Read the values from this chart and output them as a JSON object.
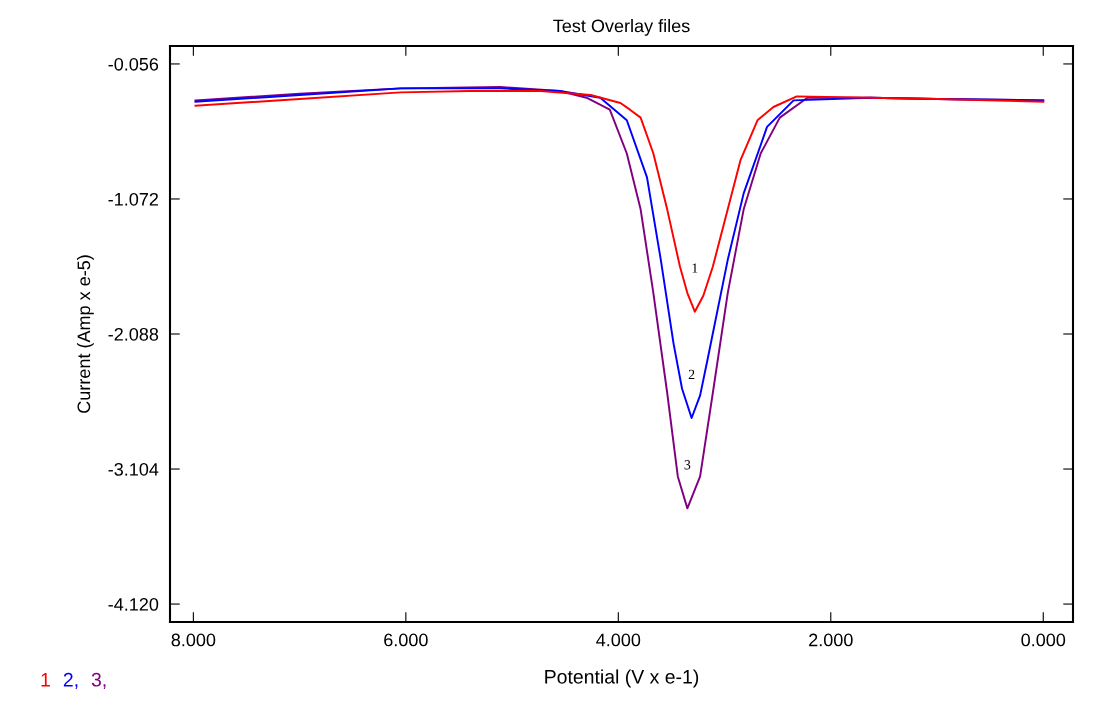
{
  "chart_data": {
    "type": "line",
    "title": "Test Overlay files",
    "xlabel": "Potential (V x e-1)",
    "ylabel": "Current (Amp x e-5)",
    "xlim": [
      8.22,
      -0.28
    ],
    "ylim": [
      -4.255,
      0.079
    ],
    "xticks": [
      {
        "value": 8,
        "label": "8.000"
      },
      {
        "value": 6,
        "label": "6.000"
      },
      {
        "value": 4,
        "label": "4.000"
      },
      {
        "value": 2,
        "label": "2.000"
      },
      {
        "value": 0,
        "label": "0.000"
      }
    ],
    "yticks": [
      {
        "value": -0.056,
        "label": "-0.056"
      },
      {
        "value": -1.072,
        "label": "-1.072"
      },
      {
        "value": -2.088,
        "label": "-2.088"
      },
      {
        "value": -3.104,
        "label": "-3.104"
      },
      {
        "value": -4.12,
        "label": "-4.120"
      }
    ],
    "grid": false,
    "legend": "bottom left",
    "marker": "none",
    "line_style": "solid",
    "series": [
      {
        "name": "1",
        "color": "#ff0000",
        "x": [
          7.98,
          7.0,
          6.05,
          5.4,
          4.73,
          4.26,
          3.98,
          3.89,
          3.79,
          3.67,
          3.54,
          3.42,
          3.35,
          3.28,
          3.2,
          3.11,
          2.97,
          2.85,
          2.69,
          2.54,
          2.32,
          1.63,
          1.0,
          0.0
        ],
        "values": [
          -0.37,
          -0.32,
          -0.27,
          -0.26,
          -0.26,
          -0.29,
          -0.35,
          -0.4,
          -0.46,
          -0.73,
          -1.15,
          -1.58,
          -1.78,
          -1.92,
          -1.8,
          -1.58,
          -1.15,
          -0.78,
          -0.48,
          -0.38,
          -0.3,
          -0.31,
          -0.32,
          -0.34
        ]
      },
      {
        "name": "2,",
        "color": "#0000ff",
        "x": [
          7.98,
          7.0,
          6.05,
          5.11,
          4.55,
          4.17,
          3.92,
          3.73,
          3.6,
          3.48,
          3.4,
          3.31,
          3.23,
          3.16,
          2.97,
          2.82,
          2.6,
          2.35,
          1.63,
          1.0,
          0.0
        ],
        "values": [
          -0.34,
          -0.29,
          -0.24,
          -0.24,
          -0.26,
          -0.31,
          -0.48,
          -0.91,
          -1.53,
          -2.16,
          -2.5,
          -2.72,
          -2.55,
          -2.28,
          -1.53,
          -1.03,
          -0.53,
          -0.33,
          -0.31,
          -0.32,
          -0.33
        ]
      },
      {
        "name": "3,",
        "color": "#800080",
        "x": [
          7.98,
          7.0,
          6.05,
          5.11,
          4.55,
          4.3,
          4.08,
          3.92,
          3.79,
          3.67,
          3.54,
          3.44,
          3.35,
          3.23,
          3.11,
          2.97,
          2.82,
          2.66,
          2.48,
          2.22,
          1.63,
          1.0,
          0.0
        ],
        "values": [
          -0.33,
          -0.28,
          -0.24,
          -0.23,
          -0.26,
          -0.31,
          -0.4,
          -0.73,
          -1.15,
          -1.78,
          -2.53,
          -3.16,
          -3.4,
          -3.16,
          -2.53,
          -1.78,
          -1.15,
          -0.73,
          -0.46,
          -0.31,
          -0.31,
          -0.32,
          -0.33
        ]
      }
    ],
    "annotations": [
      "1",
      "2",
      "3"
    ]
  }
}
